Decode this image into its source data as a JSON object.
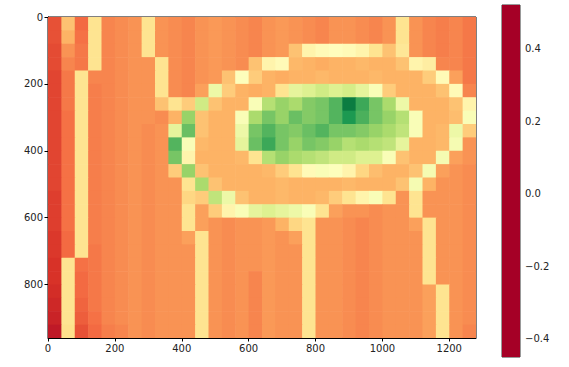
{
  "chart_data": {
    "type": "heatmap",
    "color": "RdYlGn",
    "grid": false,
    "xlim": [
      0,
      1280
    ],
    "ylim": [
      960,
      0
    ],
    "xticks": [
      0,
      200,
      400,
      600,
      800,
      1000,
      1200
    ],
    "yticks": [
      0,
      200,
      400,
      600,
      800
    ],
    "colorbar": {
      "range": [
        -0.45,
        0.52
      ],
      "ticks": [
        {
          "value": -0.4,
          "label": "−0.4"
        },
        {
          "value": -0.2,
          "label": "−0.2"
        },
        {
          "value": 0,
          "label": "0.0"
        },
        0.2,
        0.4
      ]
    },
    "cells": [
      [
        -0.3,
        -0.12,
        -0.26,
        -0.05,
        -0.22,
        -0.21,
        -0.2,
        -0.05,
        -0.2,
        -0.21,
        -0.22,
        -0.2,
        -0.19,
        -0.2,
        -0.21,
        -0.22,
        -0.2,
        -0.19,
        -0.2,
        -0.21,
        -0.22,
        -0.2,
        -0.2,
        -0.21,
        -0.22,
        -0.2,
        -0.05,
        -0.2,
        -0.22,
        -0.23,
        -0.22,
        -0.24
      ],
      [
        -0.3,
        -0.15,
        -0.25,
        -0.05,
        -0.22,
        -0.21,
        -0.2,
        -0.05,
        -0.2,
        -0.21,
        -0.22,
        -0.2,
        -0.19,
        -0.2,
        -0.21,
        -0.22,
        -0.2,
        -0.19,
        -0.2,
        -0.21,
        -0.22,
        -0.2,
        -0.2,
        -0.21,
        -0.22,
        -0.2,
        -0.05,
        -0.2,
        -0.22,
        -0.23,
        -0.22,
        -0.24
      ],
      [
        -0.31,
        -0.2,
        -0.24,
        -0.05,
        -0.22,
        -0.21,
        -0.2,
        -0.05,
        -0.2,
        -0.21,
        -0.22,
        -0.2,
        -0.19,
        -0.2,
        -0.21,
        -0.22,
        -0.2,
        -0.19,
        -0.12,
        0.0,
        0.02,
        0.03,
        0.02,
        0.0,
        -0.05,
        -0.12,
        -0.04,
        -0.2,
        -0.22,
        -0.23,
        -0.22,
        -0.24
      ],
      [
        -0.31,
        -0.22,
        -0.24,
        -0.05,
        -0.22,
        -0.21,
        -0.2,
        -0.2,
        -0.05,
        -0.21,
        -0.22,
        -0.2,
        -0.19,
        -0.2,
        -0.21,
        -0.12,
        0.0,
        0.02,
        -0.14,
        -0.15,
        -0.16,
        -0.15,
        -0.15,
        -0.14,
        -0.15,
        -0.15,
        -0.12,
        0.0,
        -0.02,
        -0.22,
        -0.22,
        -0.24
      ],
      [
        -0.32,
        -0.24,
        -0.05,
        -0.22,
        -0.22,
        -0.21,
        -0.2,
        -0.2,
        -0.05,
        -0.21,
        -0.22,
        -0.2,
        -0.19,
        -0.12,
        0.04,
        -0.1,
        -0.15,
        -0.16,
        -0.15,
        -0.15,
        -0.14,
        -0.15,
        -0.15,
        -0.15,
        -0.14,
        -0.15,
        -0.15,
        -0.15,
        -0.1,
        0.02,
        -0.18,
        -0.24
      ],
      [
        -0.32,
        -0.24,
        -0.05,
        -0.23,
        -0.22,
        -0.21,
        -0.2,
        -0.2,
        -0.05,
        -0.21,
        -0.22,
        -0.18,
        0.08,
        -0.1,
        -0.15,
        -0.16,
        -0.15,
        -0.05,
        0.1,
        0.12,
        0.15,
        0.12,
        0.14,
        0.1,
        0.05,
        -0.1,
        -0.15,
        -0.15,
        -0.15,
        -0.12,
        0.02,
        -0.22
      ],
      [
        -0.32,
        -0.24,
        -0.05,
        -0.23,
        -0.22,
        -0.21,
        -0.2,
        -0.2,
        -0.12,
        -0.05,
        -0.1,
        0.15,
        -0.12,
        -0.15,
        -0.15,
        0.05,
        0.2,
        0.25,
        0.22,
        0.28,
        0.3,
        0.35,
        0.48,
        0.38,
        0.3,
        0.22,
        0.08,
        -0.15,
        -0.15,
        -0.15,
        -0.12,
        0.0
      ],
      [
        -0.32,
        -0.25,
        -0.05,
        -0.23,
        -0.22,
        -0.21,
        -0.2,
        -0.2,
        -0.21,
        -0.15,
        0.25,
        -0.12,
        -0.15,
        -0.15,
        0.05,
        0.22,
        0.3,
        0.25,
        0.32,
        0.28,
        0.3,
        0.35,
        0.42,
        0.36,
        0.3,
        0.25,
        0.2,
        0.05,
        -0.15,
        -0.15,
        -0.13,
        0.05
      ],
      [
        -0.32,
        -0.25,
        -0.05,
        -0.23,
        -0.22,
        -0.21,
        -0.2,
        -0.21,
        -0.2,
        0.1,
        0.32,
        -0.12,
        -0.15,
        -0.15,
        0.08,
        0.3,
        0.35,
        0.3,
        0.28,
        0.32,
        0.35,
        0.3,
        0.3,
        0.28,
        0.25,
        0.22,
        0.18,
        0.05,
        -0.15,
        -0.14,
        0.08,
        -0.1
      ],
      [
        -0.32,
        -0.25,
        -0.05,
        -0.23,
        -0.22,
        -0.21,
        -0.2,
        -0.21,
        -0.2,
        0.35,
        0.05,
        -0.14,
        -0.15,
        -0.15,
        0.1,
        0.32,
        0.38,
        0.3,
        0.25,
        0.3,
        0.28,
        0.25,
        0.2,
        0.22,
        0.2,
        0.18,
        0.1,
        -0.15,
        -0.15,
        -0.14,
        0.06,
        -0.2
      ],
      [
        -0.32,
        -0.25,
        -0.05,
        -0.23,
        -0.22,
        -0.21,
        -0.2,
        -0.21,
        -0.2,
        0.3,
        0.0,
        -0.15,
        -0.15,
        -0.15,
        -0.14,
        -0.05,
        0.2,
        0.25,
        0.22,
        0.2,
        0.18,
        0.15,
        0.15,
        0.12,
        0.12,
        0.05,
        -0.12,
        -0.15,
        -0.15,
        0.06,
        -0.18,
        -0.2
      ],
      [
        -0.32,
        -0.25,
        -0.05,
        -0.23,
        -0.22,
        -0.21,
        -0.2,
        -0.21,
        -0.2,
        -0.1,
        0.25,
        -0.12,
        -0.15,
        -0.15,
        -0.15,
        -0.15,
        -0.14,
        -0.1,
        -0.05,
        0.02,
        0.05,
        0.04,
        0.0,
        -0.08,
        -0.13,
        -0.15,
        -0.15,
        -0.12,
        0.06,
        -0.18,
        -0.2,
        -0.21
      ],
      [
        -0.32,
        -0.25,
        -0.05,
        -0.23,
        -0.22,
        -0.21,
        -0.2,
        -0.21,
        -0.2,
        -0.2,
        -0.05,
        0.22,
        -0.12,
        -0.15,
        -0.15,
        -0.15,
        -0.15,
        -0.14,
        -0.15,
        -0.15,
        -0.15,
        -0.15,
        -0.14,
        -0.15,
        -0.15,
        -0.15,
        -0.12,
        0.06,
        -0.15,
        -0.2,
        -0.2,
        -0.21
      ],
      [
        -0.33,
        -0.25,
        -0.05,
        -0.23,
        -0.22,
        -0.21,
        -0.2,
        -0.21,
        -0.2,
        -0.2,
        -0.08,
        -0.1,
        0.18,
        0.08,
        -0.12,
        -0.15,
        -0.15,
        -0.14,
        -0.15,
        -0.15,
        -0.14,
        -0.1,
        -0.05,
        0.0,
        0.05,
        -0.05,
        -0.2,
        -0.05,
        -0.2,
        -0.2,
        -0.2,
        -0.21
      ],
      [
        -0.33,
        -0.25,
        -0.05,
        -0.23,
        -0.22,
        -0.21,
        -0.2,
        -0.21,
        -0.2,
        -0.2,
        -0.05,
        -0.18,
        -0.1,
        0.0,
        0.05,
        0.1,
        0.12,
        0.1,
        0.08,
        0.05,
        -0.05,
        -0.18,
        -0.2,
        -0.2,
        -0.21,
        -0.2,
        -0.2,
        -0.05,
        -0.2,
        -0.2,
        -0.2,
        -0.21
      ],
      [
        -0.33,
        -0.25,
        -0.05,
        -0.23,
        -0.22,
        -0.21,
        -0.2,
        -0.21,
        -0.2,
        -0.2,
        -0.05,
        -0.18,
        -0.2,
        -0.21,
        -0.2,
        -0.2,
        -0.19,
        -0.15,
        -0.08,
        -0.05,
        -0.2,
        -0.2,
        -0.21,
        -0.22,
        -0.21,
        -0.2,
        -0.2,
        -0.18,
        -0.05,
        -0.2,
        -0.2,
        -0.21
      ],
      [
        -0.34,
        -0.26,
        -0.05,
        -0.23,
        -0.22,
        -0.21,
        -0.2,
        -0.21,
        -0.2,
        -0.2,
        -0.18,
        -0.05,
        -0.2,
        -0.21,
        -0.2,
        -0.2,
        -0.19,
        -0.2,
        -0.18,
        -0.05,
        -0.2,
        -0.2,
        -0.21,
        -0.22,
        -0.21,
        -0.2,
        -0.2,
        -0.2,
        -0.05,
        -0.2,
        -0.2,
        -0.21
      ],
      [
        -0.34,
        -0.26,
        -0.05,
        -0.24,
        -0.22,
        -0.21,
        -0.2,
        -0.21,
        -0.2,
        -0.2,
        -0.2,
        -0.05,
        -0.2,
        -0.21,
        -0.2,
        -0.2,
        -0.19,
        -0.2,
        -0.2,
        -0.05,
        -0.2,
        -0.2,
        -0.21,
        -0.22,
        -0.21,
        -0.2,
        -0.2,
        -0.2,
        -0.05,
        -0.2,
        -0.2,
        -0.21
      ],
      [
        -0.35,
        -0.05,
        -0.25,
        -0.24,
        -0.22,
        -0.21,
        -0.2,
        -0.21,
        -0.2,
        -0.2,
        -0.2,
        -0.05,
        -0.2,
        -0.21,
        -0.2,
        -0.2,
        -0.19,
        -0.2,
        -0.2,
        -0.05,
        -0.2,
        -0.2,
        -0.21,
        -0.22,
        -0.21,
        -0.2,
        -0.2,
        -0.2,
        -0.05,
        -0.2,
        -0.2,
        -0.21
      ],
      [
        -0.35,
        -0.05,
        -0.26,
        -0.24,
        -0.22,
        -0.21,
        -0.2,
        -0.21,
        -0.2,
        -0.2,
        -0.2,
        -0.05,
        -0.2,
        -0.21,
        -0.2,
        -0.22,
        -0.19,
        -0.2,
        -0.2,
        -0.05,
        -0.2,
        -0.2,
        -0.21,
        -0.22,
        -0.21,
        -0.2,
        -0.2,
        -0.2,
        -0.05,
        -0.2,
        -0.2,
        -0.21
      ],
      [
        -0.36,
        -0.05,
        -0.26,
        -0.24,
        -0.22,
        -0.21,
        -0.2,
        -0.21,
        -0.2,
        -0.2,
        -0.2,
        -0.05,
        -0.2,
        -0.21,
        -0.2,
        -0.22,
        -0.19,
        -0.2,
        -0.2,
        -0.05,
        -0.2,
        -0.2,
        -0.21,
        -0.22,
        -0.21,
        -0.2,
        -0.2,
        -0.2,
        -0.18,
        -0.05,
        -0.2,
        -0.21
      ],
      [
        -0.37,
        -0.05,
        -0.27,
        -0.24,
        -0.22,
        -0.21,
        -0.2,
        -0.21,
        -0.2,
        -0.2,
        -0.2,
        -0.05,
        -0.2,
        -0.21,
        -0.2,
        -0.22,
        -0.19,
        -0.2,
        -0.2,
        -0.05,
        -0.2,
        -0.2,
        -0.21,
        -0.22,
        -0.21,
        -0.2,
        -0.2,
        -0.2,
        -0.18,
        -0.05,
        -0.2,
        -0.21
      ],
      [
        -0.38,
        -0.05,
        -0.28,
        -0.25,
        -0.22,
        -0.21,
        -0.2,
        -0.21,
        -0.2,
        -0.2,
        -0.2,
        -0.05,
        -0.2,
        -0.21,
        -0.2,
        -0.22,
        -0.19,
        -0.2,
        -0.2,
        -0.05,
        -0.2,
        -0.2,
        -0.21,
        -0.22,
        -0.21,
        -0.2,
        -0.2,
        -0.2,
        -0.18,
        -0.05,
        -0.2,
        -0.21
      ],
      [
        -0.4,
        -0.06,
        -0.3,
        -0.26,
        -0.23,
        -0.22,
        -0.2,
        -0.21,
        -0.2,
        -0.2,
        -0.2,
        -0.05,
        -0.2,
        -0.21,
        -0.2,
        -0.22,
        -0.19,
        -0.2,
        -0.2,
        -0.05,
        -0.2,
        -0.2,
        -0.21,
        -0.22,
        -0.21,
        -0.2,
        -0.2,
        -0.2,
        -0.18,
        -0.05,
        -0.2,
        -0.22
      ]
    ]
  }
}
